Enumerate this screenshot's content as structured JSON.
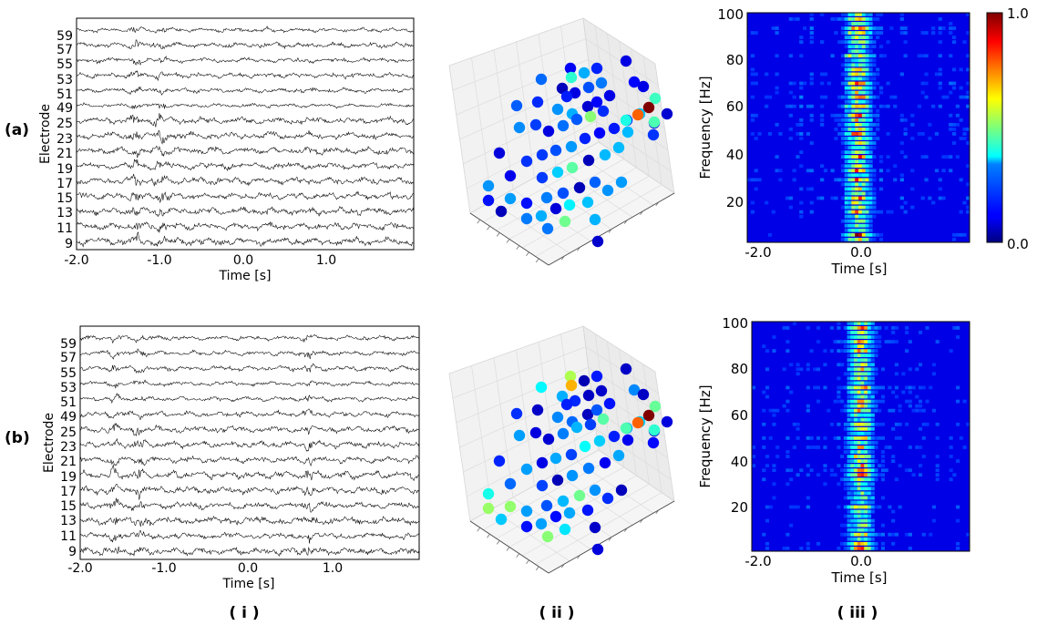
{
  "chart_data": {
    "type": "figure",
    "row_labels": [
      "(a)",
      "(b)"
    ],
    "column_labels": [
      "( i )",
      "( ii )",
      "( iii )"
    ],
    "panels": [
      {
        "row": "(a)",
        "eeg": {
          "type": "line",
          "title": "",
          "xlabel": "Time [s]",
          "ylabel": "Electrode",
          "xlim": [
            -2.0,
            2.0
          ],
          "xticks": [
            "-2.0",
            "-1.0",
            "0.0",
            "1.0"
          ],
          "xtick_values": [
            -2.0,
            -1.0,
            0.0,
            1.0
          ],
          "electrodes": [
            "59",
            "57",
            "55",
            "53",
            "51",
            "49",
            "25",
            "23",
            "21",
            "19",
            "17",
            "15",
            "13",
            "11",
            "9"
          ],
          "series_note": "one raw voltage trace per electrode, waveform not readable",
          "burst_times_s": [
            -1.3,
            -1.0
          ],
          "seed": 11
        },
        "scatter3d": {
          "type": "scatter",
          "color_note": "electrode activity on jet colormap 0-1",
          "highlight_levels": [
            1.0,
            0.78,
            0.42,
            0.45,
            0.4
          ]
        },
        "spectrogram": {
          "type": "heatmap",
          "xlabel": "Time [s]",
          "ylabel": "Frequency [Hz]",
          "xlim": [
            -2.0,
            2.0
          ],
          "ylim": [
            0,
            100
          ],
          "xticks": [
            "-2.0",
            "0.0"
          ],
          "xtick_values": [
            -2.0,
            0.0
          ],
          "yticks": [
            "20",
            "40",
            "60",
            "80",
            "100"
          ],
          "ytick_values": [
            20,
            40,
            60,
            80,
            100
          ],
          "colorbar": {
            "min_label": "0.0",
            "max_label": "1.0",
            "min": 0.0,
            "max": 1.0,
            "colormap": "jet"
          },
          "peak_time_s": 0.0,
          "seed": 5
        }
      },
      {
        "row": "(b)",
        "eeg": {
          "type": "line",
          "title": "",
          "xlabel": "Time [s]",
          "ylabel": "Electrode",
          "xlim": [
            -2.0,
            2.0
          ],
          "xticks": [
            "-2.0",
            "-1.0",
            "0.0",
            "1.0"
          ],
          "xtick_values": [
            -2.0,
            -1.0,
            0.0,
            1.0
          ],
          "electrodes": [
            "59",
            "57",
            "55",
            "53",
            "51",
            "49",
            "25",
            "23",
            "21",
            "19",
            "17",
            "15",
            "13",
            "11",
            "9"
          ],
          "series_note": "one raw voltage trace per electrode, waveform not readable",
          "burst_times_s": [
            -1.6,
            -1.3,
            0.7
          ],
          "seed": 29
        },
        "scatter3d": {
          "type": "scatter",
          "color_note": "electrode activity on jet colormap 0-1",
          "highlight_levels": [
            1.0,
            0.78,
            0.7,
            0.42,
            0.45
          ]
        },
        "spectrogram": {
          "type": "heatmap",
          "xlabel": "Time [s]",
          "ylabel": "Frequency [Hz]",
          "xlim": [
            -2.0,
            2.0
          ],
          "ylim": [
            0,
            100
          ],
          "xticks": [
            "-2.0",
            "0.0"
          ],
          "xtick_values": [
            -2.0,
            0.0
          ],
          "yticks": [
            "20",
            "40",
            "60",
            "80",
            "100"
          ],
          "ytick_values": [
            20,
            40,
            60,
            80,
            100
          ],
          "peak_time_s": 0.0,
          "seed": 17
        }
      }
    ]
  }
}
